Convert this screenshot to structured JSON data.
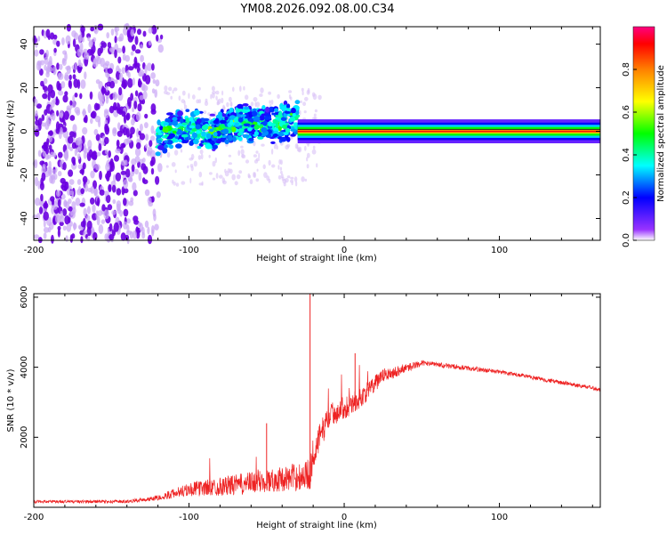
{
  "title": "YM08.2026.092.08.00.C34",
  "chart_data": [
    {
      "type": "heatmap",
      "name": "spectrogram",
      "xlabel": "Height of straight line (km)",
      "ylabel": "Frequency (Hz)",
      "xlim": [
        -200,
        165
      ],
      "ylim": [
        -50,
        48
      ],
      "xticks": [
        -200,
        -100,
        0,
        100
      ],
      "xtick_labels": [
        "-200",
        "-100",
        "0",
        "100"
      ],
      "yticks": [
        -40,
        -20,
        0,
        20,
        40
      ],
      "ytick_labels": [
        "-40",
        "-20",
        "0",
        "20",
        "40"
      ],
      "colorbar": {
        "label": "Normalized spectral amplitude",
        "range": [
          0,
          1
        ],
        "ticks": [
          0.0,
          0.2,
          0.4,
          0.6,
          0.8
        ],
        "tick_labels": [
          "0.0",
          "0.2",
          "0.4",
          "0.6",
          "0.8"
        ],
        "colors": [
          "#ffffff",
          "#8000ff",
          "#0000ff",
          "#00ffff",
          "#00ff00",
          "#ffff00",
          "#ff8000",
          "#ff0000",
          "#ff0080"
        ]
      },
      "regions": [
        {
          "x": [
            -200,
            -115
          ],
          "freq_band": [
            -50,
            48
          ],
          "amplitude": 0.1,
          "note": "broadband noise"
        },
        {
          "x": [
            -120,
            -30
          ],
          "freq_band": [
            -10,
            8
          ],
          "amplitude": 0.3,
          "note": "wandering energy"
        },
        {
          "x": [
            -30,
            165
          ],
          "freq_band": [
            -3,
            3
          ],
          "amplitude": 0.8,
          "note": "steady narrow band at 0 Hz"
        }
      ]
    },
    {
      "type": "line",
      "name": "snr",
      "xlabel": "Height of straight line (km)",
      "ylabel": "SNR (10 * v/v)",
      "xlim": [
        -200,
        165
      ],
      "ylim": [
        0,
        6100
      ],
      "xticks": [
        -200,
        -100,
        0,
        100
      ],
      "xtick_labels": [
        "-200",
        "-100",
        "0",
        "100"
      ],
      "yticks": [
        2000,
        4000,
        6000
      ],
      "ytick_labels": [
        "2000",
        "4000",
        "6000"
      ],
      "color": "#ee2222",
      "envelope": [
        {
          "x": -200,
          "base": 150,
          "noise": 90
        },
        {
          "x": -140,
          "base": 150,
          "noise": 90
        },
        {
          "x": -120,
          "base": 250,
          "noise": 150
        },
        {
          "x": -100,
          "base": 450,
          "noise": 400
        },
        {
          "x": -70,
          "base": 550,
          "noise": 600
        },
        {
          "x": -40,
          "base": 700,
          "noise": 700
        },
        {
          "x": -22,
          "base": 800,
          "noise": 900
        },
        {
          "x": -20,
          "base": 1400,
          "noise": 900
        },
        {
          "x": -10,
          "base": 2500,
          "noise": 700
        },
        {
          "x": 10,
          "base": 3000,
          "noise": 600
        },
        {
          "x": 25,
          "base": 3700,
          "noise": 400
        },
        {
          "x": 50,
          "base": 4100,
          "noise": 150
        },
        {
          "x": 100,
          "base": 3850,
          "noise": 120
        },
        {
          "x": 165,
          "base": 3350,
          "noise": 120
        }
      ],
      "spikes": [
        {
          "x": -22,
          "value": 6100
        },
        {
          "x": -50,
          "value": 2400
        },
        {
          "x": 7,
          "value": 4400
        }
      ]
    }
  ]
}
